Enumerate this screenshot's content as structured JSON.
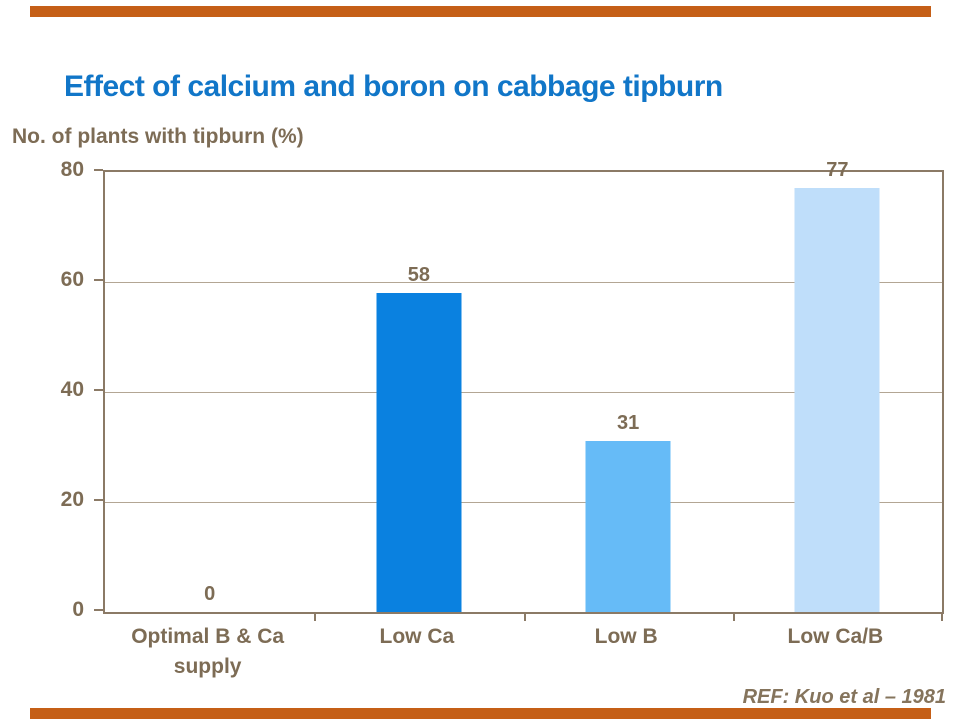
{
  "page": {
    "title": "Effect of calcium and boron on cabbage tipburn",
    "reference": "REF: Kuo et al – 1981",
    "accent_bar_color": "#C55F17",
    "title_color": "#1176C8",
    "text_color": "#7D6C55",
    "ref_color": "#85745C"
  },
  "chart_data": {
    "type": "bar",
    "title": "Effect of calcium and boron on cabbage tipburn",
    "ylabel": "No. of plants with tipburn (%)",
    "xlabel": "",
    "categories": [
      "Optimal B & Ca supply",
      "Low Ca",
      "Low B",
      "Low Ca/B"
    ],
    "category_display": [
      "Optimal B & Ca\nsupply",
      "Low Ca",
      "Low B",
      "Low Ca/B"
    ],
    "values": [
      0,
      58,
      31,
      77
    ],
    "bar_colors": [
      null,
      "#0A81E0",
      "#66BBF7",
      "#BFDEFA"
    ],
    "ylim": [
      0,
      80
    ],
    "yticks": [
      0,
      20,
      40,
      60,
      80
    ],
    "grid": true,
    "legend": false,
    "annotation": "REF: Kuo et al – 1981",
    "axis_color": "#8B7A66",
    "gridline_color": "#B3A694",
    "label_color": "#7D6C55"
  }
}
